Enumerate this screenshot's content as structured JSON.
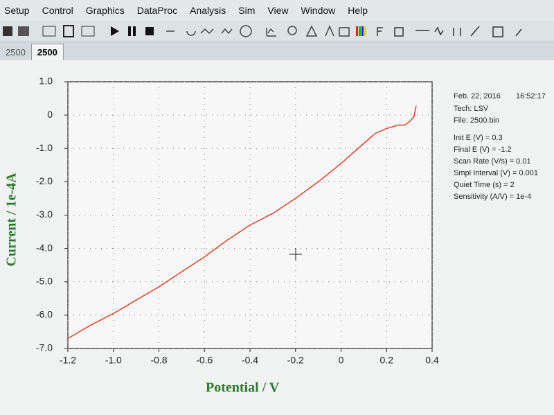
{
  "menu": [
    "Setup",
    "Control",
    "Graphics",
    "DataProc",
    "Analysis",
    "Sim",
    "View",
    "Window",
    "Help"
  ],
  "tabs": [
    "2500",
    "2500"
  ],
  "chart_data": {
    "type": "line",
    "xlabel": "Potential / V",
    "ylabel": "Current / 1e-4A",
    "x": [
      -1.2,
      -1.1,
      -1.0,
      -0.9,
      -0.8,
      -0.7,
      -0.6,
      -0.5,
      -0.4,
      -0.3,
      -0.2,
      -0.1,
      0,
      0.05,
      0.1,
      0.15,
      0.2,
      0.25,
      0.28,
      0.3,
      0.32,
      0.33
    ],
    "values": [
      -6.7,
      -6.3,
      -5.95,
      -5.55,
      -5.15,
      -4.7,
      -4.25,
      -3.75,
      -3.3,
      -2.95,
      -2.5,
      -2.0,
      -1.45,
      -1.15,
      -0.85,
      -0.55,
      -0.4,
      -0.3,
      -0.3,
      -0.2,
      -0.05,
      0.28
    ],
    "color": "#e0402a",
    "xlim": [
      -1.2,
      0.4
    ],
    "ylim": [
      -7,
      1
    ],
    "xticks": [
      -1.2,
      {
        "value": -1,
        "label": "-1.0"
      },
      -0.8,
      -0.6,
      -0.4,
      -0.2,
      0,
      0.2,
      0.4
    ],
    "yticks": [
      {
        "value": 1,
        "label": "1.0"
      },
      0,
      {
        "value": -1,
        "label": "-1.0"
      },
      {
        "value": -2,
        "label": "-2.0"
      },
      {
        "value": -3,
        "label": "-3.0"
      },
      {
        "value": -4,
        "label": "-4.0"
      },
      {
        "value": -5,
        "label": "-5.0"
      },
      {
        "value": -6,
        "label": "-6.0"
      },
      {
        "value": -7,
        "label": "-7.0"
      }
    ],
    "grid": true
  },
  "info": {
    "date": "Feb. 22, 2016",
    "time": "16:52:17",
    "lines": [
      "Tech: LSV",
      "File: 2500.bin",
      "Init E (V) = 0.3",
      "Final E (V) = -1.2",
      "Scan Rate (V/s) = 0.01",
      "Smpl Interval (V) = 0.001",
      "Quiet Time (s) = 2",
      "Sensitivity (A/V) = 1e-4"
    ]
  }
}
